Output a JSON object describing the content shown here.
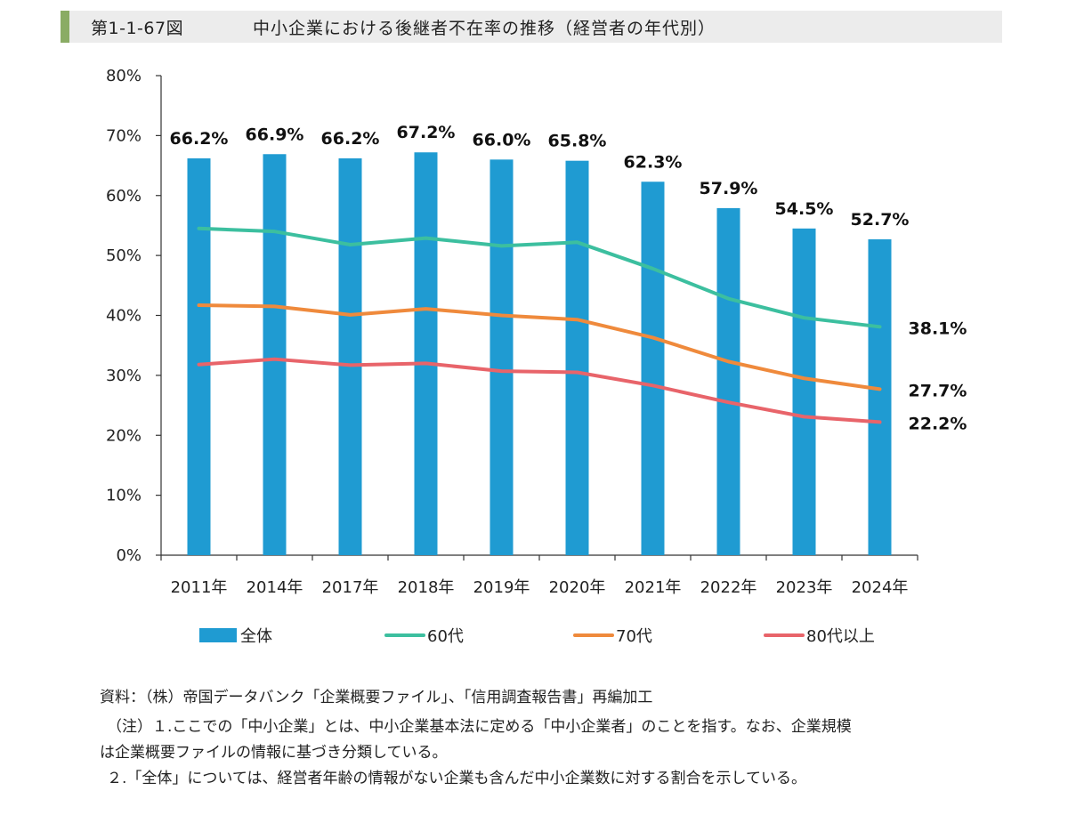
{
  "header": {
    "figure_number": "第1-1-67図",
    "title": "中小企業における後継者不在率の推移（経営者の年代別）"
  },
  "chart_data": {
    "type": "bar",
    "categories": [
      "2011年",
      "2014年",
      "2017年",
      "2018年",
      "2019年",
      "2020年",
      "2021年",
      "2022年",
      "2023年",
      "2024年"
    ],
    "ylim": [
      0,
      80
    ],
    "yticks": [
      "0%",
      "10%",
      "20%",
      "30%",
      "40%",
      "50%",
      "60%",
      "70%",
      "80%"
    ],
    "bar_series": {
      "name": "全体",
      "color": "#1f9bd2",
      "values": [
        66.2,
        66.9,
        66.2,
        67.2,
        66.0,
        65.8,
        62.3,
        57.9,
        54.5,
        52.7
      ],
      "labels": [
        "66.2%",
        "66.9%",
        "66.2%",
        "67.2%",
        "66.0%",
        "65.8%",
        "62.3%",
        "57.9%",
        "54.5%",
        "52.7%"
      ]
    },
    "line_series": [
      {
        "name": "60代",
        "color": "#3cbf9f",
        "values": [
          54.5,
          54.0,
          51.8,
          52.9,
          51.6,
          52.2,
          47.8,
          42.8,
          39.6,
          38.1
        ],
        "end_label": "38.1%"
      },
      {
        "name": "70代",
        "color": "#ef8a3c",
        "values": [
          41.7,
          41.5,
          40.1,
          41.1,
          40.0,
          39.3,
          36.3,
          32.3,
          29.5,
          27.7
        ],
        "end_label": "27.7%"
      },
      {
        "name": "80代以上",
        "color": "#e8646a",
        "values": [
          31.8,
          32.7,
          31.7,
          32.0,
          30.7,
          30.5,
          28.3,
          25.5,
          23.1,
          22.2
        ],
        "end_label": "22.2%"
      }
    ],
    "legend": [
      "全体",
      "60代",
      "70代",
      "80代以上"
    ]
  },
  "notes": {
    "source": "資料：（株）帝国データバンク「企業概要ファイル」、「信用調査報告書」再編加工",
    "note1_line1": "（注）１.ここでの「中小企業」とは、中小企業基本法に定める「中小企業者」のことを指す。なお、企業規模",
    "note1_line2": "は企業概要ファイルの情報に基づき分類している。",
    "note2": "２.「全体」については、経営者年齢の情報がない企業も含んだ中小企業数に対する割合を示している。"
  }
}
